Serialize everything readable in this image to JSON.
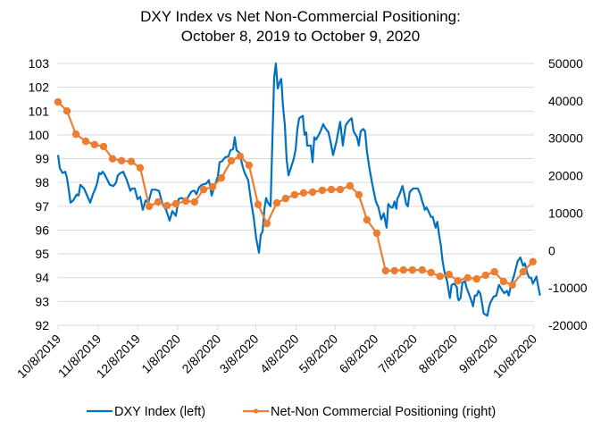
{
  "chart_data": {
    "type": "line",
    "title": "DXY Index vs Net Non-Commercial Positioning:",
    "subtitle": "October 8, 2019 to October 9, 2020",
    "xlabel": "",
    "ylabel_left": "",
    "ylabel_right": "",
    "x_start_date": "10/8/2019",
    "x_tick_labels": [
      "10/8/2019",
      "11/8/2019",
      "12/8/2019",
      "1/8/2020",
      "2/8/2020",
      "3/8/2020",
      "4/8/2020",
      "5/8/2020",
      "6/8/2020",
      "7/8/2020",
      "8/8/2020",
      "9/8/2020",
      "10/8/2020"
    ],
    "x_tick_days": [
      0,
      31,
      61,
      92,
      123,
      152,
      183,
      213,
      244,
      274,
      305,
      336,
      366
    ],
    "xlim_days": [
      0,
      366
    ],
    "y_left": {
      "ylim": [
        92,
        103
      ],
      "ticks": [
        92,
        93,
        94,
        95,
        96,
        97,
        98,
        99,
        100,
        101,
        102,
        103
      ]
    },
    "y_right": {
      "ylim": [
        -20000,
        50000
      ],
      "ticks": [
        -20000,
        -10000,
        0,
        10000,
        20000,
        30000,
        40000,
        50000
      ]
    },
    "grid": "horizontal",
    "legend_position": "bottom",
    "series": [
      {
        "name": "DXY Index (left)",
        "axis": "left",
        "color": "#0070C0",
        "marker": false,
        "points": [
          [
            0,
            99.15
          ],
          [
            1.4,
            98.6
          ],
          [
            3.4,
            98.4
          ],
          [
            5.5,
            98.45
          ],
          [
            6.9,
            98.2
          ],
          [
            9.6,
            97.15
          ],
          [
            11.7,
            97.25
          ],
          [
            14.4,
            97.5
          ],
          [
            15.8,
            97.45
          ],
          [
            17.2,
            97.9
          ],
          [
            19.9,
            97.75
          ],
          [
            22,
            97.5
          ],
          [
            24.7,
            97.15
          ],
          [
            26.8,
            97.5
          ],
          [
            28.8,
            97.75
          ],
          [
            30.2,
            98.0
          ],
          [
            31.6,
            98.4
          ],
          [
            32.9,
            98.35
          ],
          [
            34.3,
            98.45
          ],
          [
            35.7,
            98.35
          ],
          [
            37.1,
            98.2
          ],
          [
            39.8,
            97.9
          ],
          [
            42.6,
            97.85
          ],
          [
            44.6,
            98.0
          ],
          [
            46,
            98.3
          ],
          [
            48.1,
            98.4
          ],
          [
            50.1,
            98.45
          ],
          [
            52.9,
            98.1
          ],
          [
            55.6,
            97.65
          ],
          [
            57,
            97.75
          ],
          [
            59,
            97.75
          ],
          [
            61.1,
            97.3
          ],
          [
            63.2,
            97.4
          ],
          [
            65.2,
            96.85
          ],
          [
            67.3,
            97.25
          ],
          [
            69.4,
            97.15
          ],
          [
            72.1,
            97.7
          ],
          [
            74.8,
            97.7
          ],
          [
            77.6,
            97.65
          ],
          [
            80.3,
            97.1
          ],
          [
            83.1,
            96.85
          ],
          [
            85.8,
            96.4
          ],
          [
            87.9,
            96.8
          ],
          [
            90.6,
            96.6
          ],
          [
            92.7,
            97.3
          ],
          [
            94.8,
            97.35
          ],
          [
            96.8,
            97.3
          ],
          [
            99.6,
            97.35
          ],
          [
            102.3,
            97.6
          ],
          [
            103.7,
            97.65
          ],
          [
            105,
            97.65
          ],
          [
            106.4,
            97.5
          ],
          [
            108.5,
            97.8
          ],
          [
            110.5,
            97.9
          ],
          [
            113.9,
            97.95
          ],
          [
            116,
            98.1
          ],
          [
            118.1,
            97.45
          ],
          [
            120.1,
            97.8
          ],
          [
            122.9,
            98.25
          ],
          [
            124.2,
            98.85
          ],
          [
            126.3,
            98.9
          ],
          [
            128.4,
            99.05
          ],
          [
            131.1,
            99.1
          ],
          [
            132.5,
            99.35
          ],
          [
            134.6,
            99.4
          ],
          [
            135.9,
            99.9
          ],
          [
            137.3,
            99.35
          ],
          [
            139.4,
            99.25
          ],
          [
            142.1,
            98.65
          ],
          [
            143.5,
            98.4
          ],
          [
            146.2,
            98.1
          ],
          [
            148.3,
            97.25
          ],
          [
            150.4,
            96.55
          ],
          [
            152.4,
            95.65
          ],
          [
            154.5,
            95.05
          ],
          [
            155.9,
            95.8
          ],
          [
            157.3,
            95.95
          ],
          [
            158.6,
            96.85
          ],
          [
            160,
            97.35
          ],
          [
            161.4,
            97.15
          ],
          [
            163.4,
            97.0
          ],
          [
            164.8,
            99.75
          ],
          [
            166.2,
            102.4
          ],
          [
            167.5,
            103.0
          ],
          [
            168.9,
            101.95
          ],
          [
            170.3,
            102.2
          ],
          [
            171.7,
            102.35
          ],
          [
            173,
            101.2
          ],
          [
            174.4,
            100.4
          ],
          [
            175.8,
            98.95
          ],
          [
            177.2,
            98.3
          ],
          [
            179.2,
            98.65
          ],
          [
            181.3,
            99.0
          ],
          [
            182.7,
            99.4
          ],
          [
            184,
            100.25
          ],
          [
            185.4,
            100.7
          ],
          [
            186.8,
            100.75
          ],
          [
            188.2,
            100.8
          ],
          [
            189.5,
            100.0
          ],
          [
            190.9,
            100.1
          ],
          [
            191.6,
            99.55
          ],
          [
            194.3,
            99.55
          ],
          [
            195.7,
            98.85
          ],
          [
            197.1,
            99.9
          ],
          [
            198.4,
            99.8
          ],
          [
            200.5,
            100.0
          ],
          [
            202.6,
            100.25
          ],
          [
            203.9,
            100.45
          ],
          [
            205.3,
            100.3
          ],
          [
            208,
            100.1
          ],
          [
            210.1,
            99.55
          ],
          [
            211.5,
            99.15
          ],
          [
            214.2,
            99.75
          ],
          [
            216.9,
            100.55
          ],
          [
            219,
            99.55
          ],
          [
            221.1,
            100.4
          ],
          [
            222.4,
            100.5
          ],
          [
            223.8,
            100.6
          ],
          [
            225.8,
            100.7
          ],
          [
            227.2,
            100.15
          ],
          [
            229.9,
            99.9
          ],
          [
            231.3,
            99.55
          ],
          [
            232.7,
            100.15
          ],
          [
            234.7,
            100.25
          ],
          [
            236.1,
            100.15
          ],
          [
            237.5,
            99.3
          ],
          [
            239.6,
            98.55
          ],
          [
            241.6,
            97.95
          ],
          [
            244.4,
            97.2
          ],
          [
            246.4,
            96.95
          ],
          [
            248.5,
            96.45
          ],
          [
            250.5,
            96.7
          ],
          [
            251.9,
            96.3
          ],
          [
            252.6,
            96.1
          ],
          [
            253.9,
            97.1
          ],
          [
            256,
            96.95
          ],
          [
            257.4,
            96.95
          ],
          [
            258.7,
            97.2
          ],
          [
            260.1,
            96.9
          ],
          [
            260.8,
            97.3
          ],
          [
            262.2,
            97.45
          ],
          [
            264.9,
            97.85
          ],
          [
            266.3,
            97.5
          ],
          [
            267.7,
            97.1
          ],
          [
            269,
            97.0
          ],
          [
            270.4,
            97.6
          ],
          [
            273.1,
            97.75
          ],
          [
            276.6,
            97.75
          ],
          [
            278.6,
            97.5
          ],
          [
            280,
            97.2
          ],
          [
            281.3,
            97.0
          ],
          [
            282,
            96.85
          ],
          [
            283.4,
            96.95
          ],
          [
            284.8,
            96.8
          ],
          [
            286.8,
            96.55
          ],
          [
            288.2,
            96.55
          ],
          [
            289.6,
            96.25
          ],
          [
            290.3,
            96.1
          ],
          [
            291.6,
            96.35
          ],
          [
            293,
            95.8
          ],
          [
            294.4,
            95.35
          ],
          [
            295.7,
            94.7
          ],
          [
            297.1,
            94.25
          ],
          [
            299.2,
            93.85
          ],
          [
            300.6,
            93.35
          ],
          [
            301.3,
            93.15
          ],
          [
            302.6,
            93.7
          ],
          [
            304.7,
            93.75
          ],
          [
            306.7,
            93.6
          ],
          [
            307.4,
            93.15
          ],
          [
            308.1,
            93.05
          ],
          [
            309.5,
            93.15
          ],
          [
            310.9,
            93.8
          ],
          [
            312.9,
            93.85
          ],
          [
            314.3,
            93.55
          ],
          [
            316.4,
            93.25
          ],
          [
            317.7,
            93.05
          ],
          [
            319.1,
            92.8
          ],
          [
            320.5,
            93.25
          ],
          [
            321.9,
            93.25
          ],
          [
            323.2,
            93.45
          ],
          [
            324.6,
            93.35
          ],
          [
            326,
            92.95
          ],
          [
            327.3,
            92.5
          ],
          [
            330.1,
            92.4
          ],
          [
            331.5,
            92.8
          ],
          [
            332.8,
            93.0
          ],
          [
            334.9,
            93.2
          ],
          [
            337,
            93.25
          ],
          [
            339,
            93.7
          ],
          [
            341.8,
            93.45
          ],
          [
            343.1,
            93.35
          ],
          [
            345.2,
            93.45
          ],
          [
            346.6,
            93.25
          ],
          [
            348.6,
            93.75
          ],
          [
            350.7,
            94.1
          ],
          [
            353.4,
            94.7
          ],
          [
            355.5,
            94.85
          ],
          [
            357.6,
            94.5
          ],
          [
            358.9,
            94.6
          ],
          [
            361,
            94.15
          ],
          [
            362.4,
            94.0
          ],
          [
            363.8,
            94.0
          ],
          [
            365.1,
            93.75
          ],
          [
            367.9,
            94.05
          ],
          [
            368.5,
            93.85
          ],
          [
            369.9,
            93.45
          ],
          [
            370.6,
            93.25
          ]
        ]
      },
      {
        "name": "Net-Non Commercial Positioning (right)",
        "axis": "right",
        "color": "#ED7D31",
        "marker": true,
        "points": [
          [
            0,
            39700
          ],
          [
            6.9,
            37300
          ],
          [
            13.7,
            31100
          ],
          [
            21.3,
            29200
          ],
          [
            28.1,
            28300
          ],
          [
            35,
            27800
          ],
          [
            41.9,
            24500
          ],
          [
            48.8,
            24000
          ],
          [
            56.3,
            23800
          ],
          [
            63.2,
            22100
          ],
          [
            70.1,
            11800
          ],
          [
            77,
            13000
          ],
          [
            83.8,
            12000
          ],
          [
            90.6,
            12500
          ],
          [
            98.2,
            13200
          ],
          [
            105,
            13000
          ],
          [
            111.9,
            16300
          ],
          [
            118.8,
            17000
          ],
          [
            125.6,
            19400
          ],
          [
            133.2,
            24000
          ],
          [
            140,
            25200
          ],
          [
            146.9,
            22800
          ],
          [
            153.8,
            12300
          ],
          [
            160.6,
            7200
          ],
          [
            168.2,
            12700
          ],
          [
            175,
            13900
          ],
          [
            181.9,
            14900
          ],
          [
            188.8,
            15400
          ],
          [
            195.7,
            15600
          ],
          [
            203.2,
            16100
          ],
          [
            210.1,
            16300
          ],
          [
            217,
            16300
          ],
          [
            224.5,
            17300
          ],
          [
            231.3,
            14900
          ],
          [
            237.5,
            8200
          ],
          [
            245.1,
            4600
          ],
          [
            251.9,
            -5400
          ],
          [
            258.7,
            -5400
          ],
          [
            265.6,
            -5200
          ],
          [
            272.5,
            -5200
          ],
          [
            280,
            -5200
          ],
          [
            286.8,
            -5900
          ],
          [
            293.7,
            -6900
          ],
          [
            300.6,
            -6400
          ],
          [
            307.4,
            -8100
          ],
          [
            315,
            -7300
          ],
          [
            321.9,
            -7600
          ],
          [
            328.7,
            -6600
          ],
          [
            335.6,
            -5700
          ],
          [
            342.5,
            -8300
          ],
          [
            349.3,
            -9200
          ],
          [
            357.6,
            -5700
          ],
          [
            365.1,
            -3000
          ]
        ]
      }
    ]
  }
}
